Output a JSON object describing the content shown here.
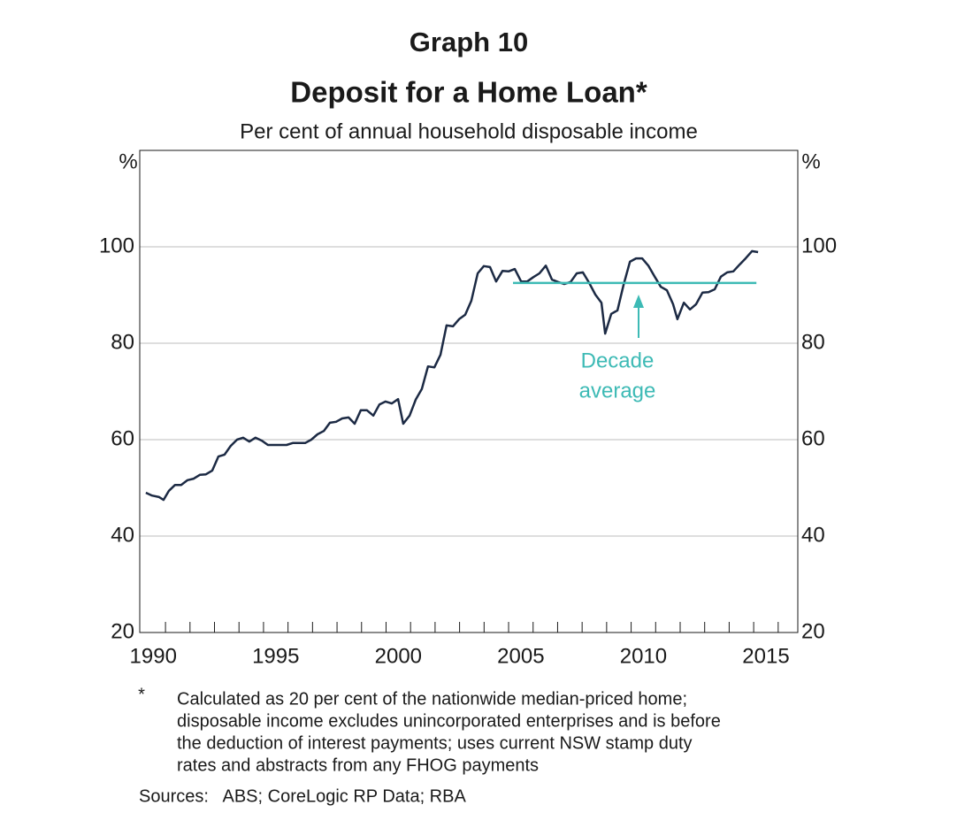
{
  "chart_data": {
    "type": "line",
    "figure_label": "Graph 10",
    "title": "Deposit for a Home Loan*",
    "subtitle": "Per cent of annual household disposable income",
    "y_unit": "%",
    "annotation_lines": [
      "Decade",
      "average"
    ],
    "xlim": [
      1989.95,
      2016.8
    ],
    "xticks": [
      {
        "value": 1990.5,
        "label": "1990"
      },
      {
        "value": 1995.5,
        "label": "1995"
      },
      {
        "value": 2000.5,
        "label": "2000"
      },
      {
        "value": 2005.5,
        "label": "2005"
      },
      {
        "value": 2010.5,
        "label": "2010"
      },
      {
        "value": 2015.5,
        "label": "2015"
      }
    ],
    "xminor_ticks": [
      1991,
      1992,
      1993,
      1994,
      1995,
      1996,
      1997,
      1998,
      1999,
      2000,
      2001,
      2002,
      2003,
      2004,
      2005,
      2006,
      2007,
      2008,
      2009,
      2010,
      2011,
      2012,
      2013,
      2014,
      2015,
      2016
    ],
    "ylim": [
      20,
      120
    ],
    "yticks": [
      20,
      40,
      60,
      80,
      100
    ],
    "grid": true,
    "series": [
      {
        "color": "#1c2a44",
        "x": [
          1990.2,
          1990.45,
          1990.74,
          1990.92,
          1991.14,
          1991.39,
          1991.64,
          1991.9,
          1992.15,
          1992.4,
          1992.65,
          1992.91,
          1993.16,
          1993.41,
          1993.66,
          1993.92,
          1994.17,
          1994.42,
          1994.67,
          1994.93,
          1995.18,
          1995.43,
          1995.69,
          1995.94,
          1996.19,
          1996.44,
          1996.7,
          1996.95,
          1997.2,
          1997.46,
          1997.71,
          1997.96,
          1998.21,
          1998.47,
          1998.72,
          1998.97,
          1999.22,
          1999.48,
          1999.73,
          1999.98,
          2000.23,
          2000.49,
          2000.7,
          2000.96,
          2001.21,
          2001.46,
          2001.71,
          2001.97,
          2002.22,
          2002.47,
          2002.73,
          2002.98,
          2003.23,
          2003.48,
          2003.74,
          2003.99,
          2004.24,
          2004.49,
          2004.75,
          2005.0,
          2005.25,
          2005.51,
          2005.76,
          2006.01,
          2006.26,
          2006.52,
          2006.77,
          2007.02,
          2007.27,
          2007.53,
          2007.78,
          2008.03,
          2008.29,
          2008.54,
          2008.79,
          2008.94,
          2009.19,
          2009.44,
          2009.69,
          2009.95,
          2010.2,
          2010.45,
          2010.7,
          2010.96,
          2011.21,
          2011.46,
          2011.71,
          2011.89,
          2012.15,
          2012.4,
          2012.65,
          2012.91,
          2013.16,
          2013.41,
          2013.66,
          2013.92,
          2014.17,
          2014.42,
          2014.67,
          2014.93,
          2015.18
        ],
        "values": [
          49.0,
          48.4,
          48.1,
          47.5,
          49.4,
          50.6,
          50.6,
          51.6,
          51.9,
          52.7,
          52.8,
          53.6,
          56.5,
          56.9,
          58.7,
          60.0,
          60.4,
          59.6,
          60.4,
          59.8,
          58.9,
          58.9,
          58.9,
          58.9,
          59.3,
          59.3,
          59.3,
          60.0,
          61.1,
          61.8,
          63.5,
          63.7,
          64.4,
          64.6,
          63.3,
          66.1,
          66.1,
          65.0,
          67.3,
          67.9,
          67.5,
          68.4,
          63.3,
          65.0,
          68.3,
          70.5,
          75.2,
          75.0,
          77.6,
          83.7,
          83.5,
          85.0,
          85.9,
          88.8,
          94.5,
          96.0,
          95.8,
          92.8,
          95.0,
          94.9,
          95.4,
          92.8,
          92.8,
          93.7,
          94.5,
          96.1,
          93.2,
          92.7,
          92.3,
          92.7,
          94.5,
          94.7,
          92.5,
          90.1,
          88.4,
          82.0,
          86.1,
          86.8,
          92.1,
          96.9,
          97.6,
          97.6,
          96.1,
          93.8,
          91.7,
          91.0,
          88.1,
          85.0,
          88.4,
          87.0,
          88.1,
          90.5,
          90.6,
          91.2,
          93.8,
          94.7,
          94.9,
          96.3,
          97.6,
          99.1,
          98.9
        ]
      },
      {
        "color": "#3dbab5",
        "x": [
          2005.18,
          2015.11
        ],
        "values": [
          92.5,
          92.5
        ]
      }
    ],
    "footnote_marker": "*",
    "footnote_lines": [
      "Calculated as 20 per cent of the nationwide median-priced home;",
      "disposable income excludes unincorporated enterprises and is before",
      "the deduction of interest payments; uses current NSW stamp duty",
      "rates and abstracts from any FHOG payments"
    ],
    "sources": "Sources:   ABS; CoreLogic RP Data; RBA"
  }
}
